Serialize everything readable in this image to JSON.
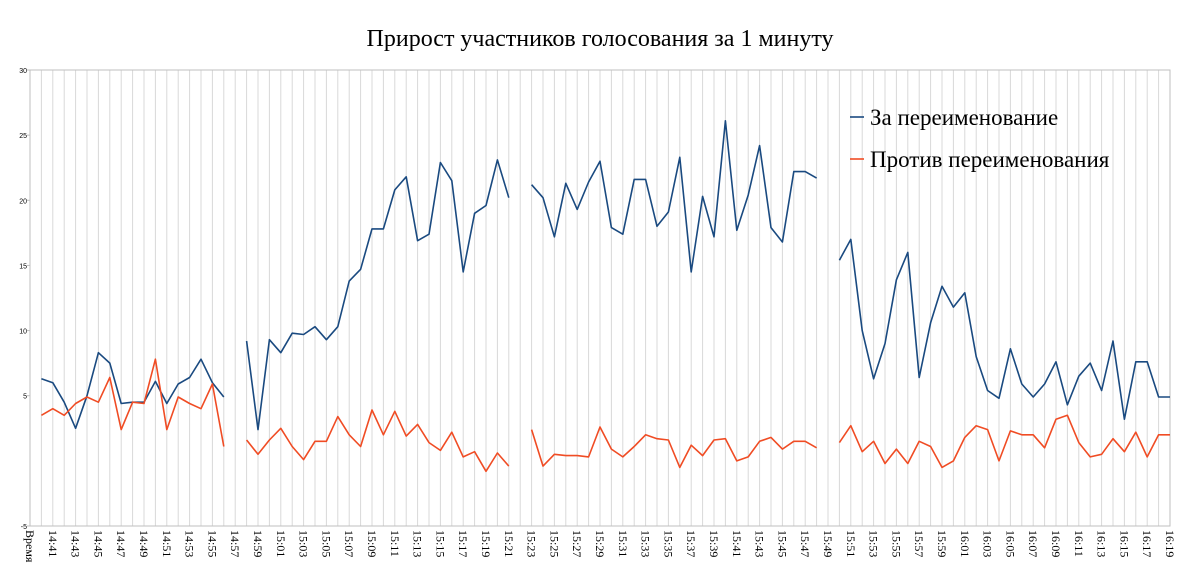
{
  "chart_data": {
    "type": "line",
    "title": "Прирост участников голосования за 1 минуту",
    "categories": [
      "Время",
      null,
      "14:41",
      null,
      "14:43",
      null,
      "14:45",
      null,
      "14:47",
      null,
      "14:49",
      null,
      "14:51",
      null,
      "14:53",
      null,
      "14:55",
      null,
      "14:57",
      null,
      "14:59",
      null,
      "15:01",
      null,
      "15:03",
      null,
      "15:05",
      null,
      "15:07",
      null,
      "15:09",
      null,
      "15:11",
      null,
      "15:13",
      null,
      "15:15",
      null,
      "15:17",
      null,
      "15:19",
      null,
      "15:21",
      null,
      "15:23",
      null,
      "15:25",
      null,
      "15:27",
      null,
      "15:29",
      null,
      "15:31",
      null,
      "15:33",
      null,
      "15:35",
      null,
      "15:37",
      null,
      "15:39",
      null,
      "15:41",
      null,
      "15:43",
      null,
      "15:45",
      null,
      "15:47",
      null,
      "15:49",
      null,
      "15:51",
      null,
      "15:53",
      null,
      "15:55",
      null,
      "15:57",
      null,
      "15:59",
      null,
      "16:01",
      null,
      "16:03",
      null,
      "16:05",
      null,
      "16:07",
      null,
      "16:09",
      null,
      "16:11",
      null,
      "16:13",
      null,
      "16:15",
      null,
      "16:17",
      null,
      "16:19"
    ],
    "series": [
      {
        "name": "За переименование",
        "color": "#1a4a80",
        "values": [
          null,
          6.3,
          6.0,
          4.5,
          2.5,
          5.0,
          8.3,
          7.5,
          4.4,
          4.5,
          4.5,
          6.1,
          4.4,
          5.9,
          6.4,
          7.8,
          6.0,
          4.9,
          null,
          9.2,
          2.4,
          9.3,
          8.3,
          9.8,
          9.7,
          10.3,
          9.3,
          10.3,
          13.8,
          14.7,
          17.8,
          17.8,
          20.8,
          21.8,
          16.9,
          17.4,
          22.9,
          21.5,
          14.5,
          19.0,
          19.6,
          23.1,
          20.2,
          null,
          21.2,
          20.2,
          17.2,
          21.3,
          19.3,
          21.4,
          23.0,
          17.9,
          17.4,
          21.6,
          21.6,
          18.0,
          19.1,
          23.3,
          14.5,
          20.3,
          17.2,
          26.1,
          17.7,
          20.4,
          24.2,
          17.9,
          16.8,
          22.2,
          22.2,
          21.7,
          null,
          15.4,
          17.0,
          10.0,
          6.3,
          9.0,
          13.9,
          16.0,
          6.4,
          10.6,
          13.4,
          11.8,
          12.9,
          8.0,
          5.4,
          4.8,
          8.6,
          5.9,
          4.9,
          5.9,
          7.6,
          4.3,
          6.5,
          7.5,
          5.4,
          9.2,
          3.2,
          7.6,
          7.6,
          4.9,
          4.9
        ]
      },
      {
        "name": "Против переименования",
        "color": "#f04c24",
        "values": [
          null,
          3.5,
          4.0,
          3.5,
          4.4,
          4.9,
          4.5,
          6.4,
          2.4,
          4.5,
          4.4,
          7.8,
          2.4,
          4.9,
          4.4,
          4.0,
          5.9,
          1.1,
          null,
          1.6,
          0.5,
          1.6,
          2.5,
          1.1,
          0.1,
          1.5,
          1.5,
          3.4,
          2.0,
          1.1,
          3.9,
          2.0,
          3.8,
          1.9,
          2.8,
          1.4,
          0.8,
          2.2,
          0.3,
          0.7,
          -0.8,
          0.6,
          -0.4,
          null,
          2.4,
          -0.4,
          0.5,
          0.4,
          0.4,
          0.3,
          2.6,
          0.9,
          0.3,
          1.1,
          2.0,
          1.7,
          1.6,
          -0.5,
          1.2,
          0.4,
          1.6,
          1.7,
          0.0,
          0.3,
          1.5,
          1.8,
          0.9,
          1.5,
          1.5,
          1.0,
          null,
          1.4,
          2.7,
          0.7,
          1.5,
          -0.2,
          0.9,
          -0.2,
          1.5,
          1.1,
          -0.5,
          0.0,
          1.8,
          2.7,
          2.4,
          0.0,
          2.3,
          2.0,
          2.0,
          1.0,
          3.2,
          3.5,
          1.4,
          0.3,
          0.5,
          1.7,
          0.7,
          2.2,
          0.3,
          2.0,
          2.0
        ]
      }
    ],
    "ylim": [
      -5,
      30
    ],
    "yticks": [
      -5,
      5,
      10,
      15,
      20,
      25,
      30
    ],
    "grid": true,
    "legend": "top-right"
  }
}
